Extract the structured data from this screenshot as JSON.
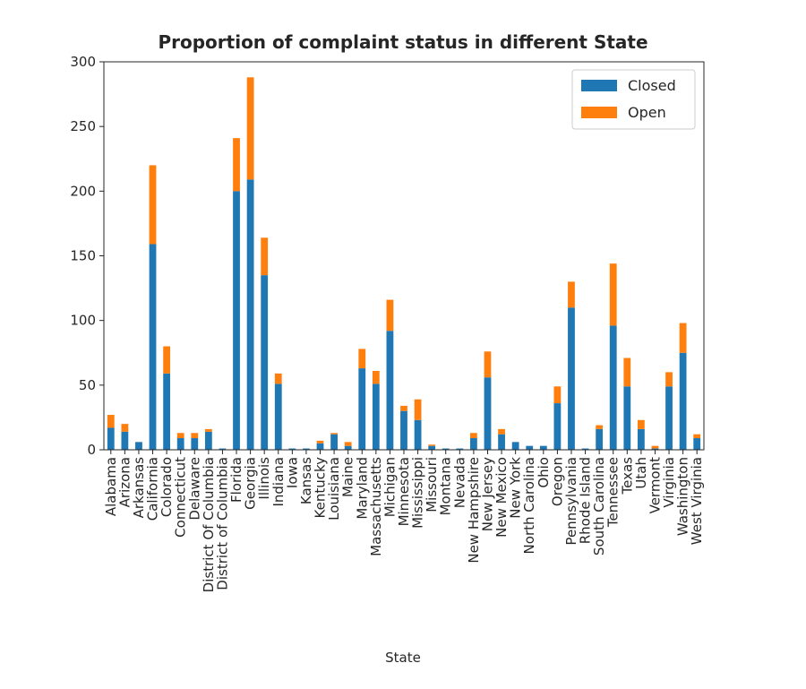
{
  "chart_data": {
    "type": "bar",
    "stacked": true,
    "title": "Proportion of complaint status in different State",
    "xlabel": "State",
    "ylabel": "",
    "ylim": [
      0,
      300
    ],
    "yticks": [
      0,
      50,
      100,
      150,
      200,
      250,
      300
    ],
    "grid": false,
    "legend_position": "top-right",
    "categories": [
      "Alabama",
      "Arizona",
      "Arkansas",
      "California",
      "Colorado",
      "Connecticut",
      "Delaware",
      "District Of Columbia",
      "District of Columbia",
      "Florida",
      "Georgia",
      "Illinois",
      "Indiana",
      "Iowa",
      "Kansas",
      "Kentucky",
      "Louisiana",
      "Maine",
      "Maryland",
      "Massachusetts",
      "Michigan",
      "Minnesota",
      "Mississippi",
      "Missouri",
      "Montana",
      "Nevada",
      "New Hampshire",
      "New Jersey",
      "New Mexico",
      "New York",
      "North Carolina",
      "Ohio",
      "Oregon",
      "Pennsylvania",
      "Rhode Island",
      "South Carolina",
      "Tennessee",
      "Texas",
      "Utah",
      "Vermont",
      "Virginia",
      "Washington",
      "West Virginia"
    ],
    "series": [
      {
        "name": "Closed",
        "color": "#1f77b4",
        "values": [
          17,
          14,
          6,
          159,
          59,
          9,
          9,
          14,
          1,
          200,
          209,
          135,
          51,
          1,
          1,
          5,
          12,
          3,
          63,
          51,
          92,
          30,
          23,
          3,
          1,
          1,
          9,
          56,
          12,
          6,
          3,
          3,
          36,
          110,
          1,
          16,
          96,
          49,
          16,
          1,
          49,
          75,
          9
        ]
      },
      {
        "name": "Open",
        "color": "#ff7f0e",
        "values": [
          10,
          6,
          0,
          61,
          21,
          4,
          4,
          2,
          0,
          41,
          79,
          29,
          8,
          0,
          0,
          2,
          1,
          3,
          15,
          10,
          24,
          4,
          16,
          1,
          0,
          0,
          4,
          20,
          4,
          0,
          0,
          0,
          13,
          20,
          0,
          3,
          48,
          22,
          7,
          2,
          11,
          23,
          3
        ]
      }
    ]
  }
}
